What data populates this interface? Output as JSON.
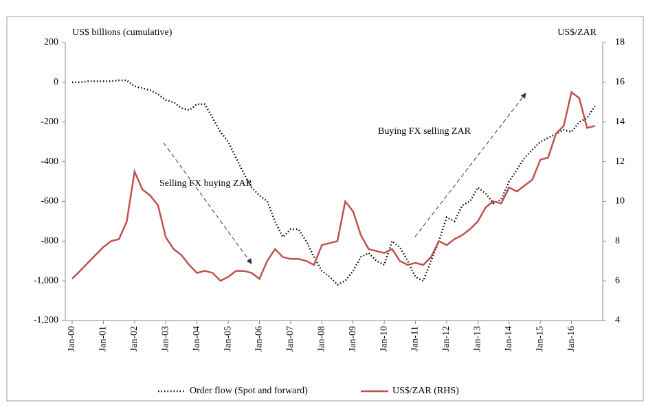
{
  "chart_data": {
    "type": "line",
    "y_label": "US$ billions (cumulative)",
    "y2_label": "US$/ZAR",
    "annotations": [
      "Selling FX buying ZAR",
      "Buying FX selling ZAR"
    ],
    "categories": [
      "Jan-00",
      null,
      null,
      null,
      "Jan-01",
      null,
      null,
      null,
      "Jan-02",
      null,
      null,
      null,
      "Jan-03",
      null,
      null,
      null,
      "Jan-04",
      null,
      null,
      null,
      "Jan-05",
      null,
      null,
      null,
      "Jan-06",
      null,
      null,
      null,
      "Jan-07",
      null,
      null,
      null,
      "Jan-08",
      null,
      null,
      null,
      "Jan-09",
      null,
      null,
      null,
      "Jan-10",
      null,
      null,
      null,
      "Jan-11",
      null,
      null,
      null,
      "Jan-12",
      null,
      null,
      null,
      "Jan-13",
      null,
      null,
      null,
      "Jan-14",
      null,
      null,
      null,
      "Jan-15",
      null,
      null,
      null,
      "Jan-16",
      null,
      null,
      null
    ],
    "series": [
      {
        "name": "Order flow (Spot and forward)",
        "color": "#000000",
        "line_style": "dotted",
        "axis": "y",
        "values": [
          0,
          0,
          5,
          5,
          5,
          5,
          10,
          10,
          -20,
          -30,
          -40,
          -60,
          -90,
          -100,
          -130,
          -140,
          -110,
          -110,
          -180,
          -250,
          -300,
          -380,
          -460,
          -530,
          -570,
          -600,
          -700,
          -780,
          -740,
          -740,
          -800,
          -880,
          -950,
          -980,
          -1020,
          -1000,
          -950,
          -880,
          -860,
          -900,
          -920,
          -800,
          -830,
          -900,
          -980,
          -1000,
          -900,
          -800,
          -680,
          -700,
          -620,
          -600,
          -530,
          -560,
          -610,
          -590,
          -500,
          -440,
          -380,
          -340,
          -300,
          -280,
          -260,
          -240,
          -250,
          -200,
          -180,
          -120
        ]
      },
      {
        "name": "US$/ZAR (RHS)",
        "color": "#c0504d",
        "line_style": "solid",
        "axis": "y2",
        "values": [
          6.1,
          6.5,
          6.9,
          7.3,
          7.7,
          8.0,
          8.1,
          9.0,
          11.5,
          10.6,
          10.3,
          9.8,
          8.2,
          7.6,
          7.3,
          6.8,
          6.4,
          6.5,
          6.4,
          6.0,
          6.2,
          6.5,
          6.5,
          6.4,
          6.1,
          7.0,
          7.6,
          7.2,
          7.1,
          7.1,
          7.0,
          6.8,
          7.8,
          7.9,
          8.0,
          10.0,
          9.5,
          8.3,
          7.6,
          7.5,
          7.4,
          7.6,
          7.0,
          6.8,
          6.9,
          6.8,
          7.2,
          8.0,
          7.8,
          8.1,
          8.3,
          8.6,
          9.0,
          9.7,
          10.0,
          9.9,
          10.7,
          10.5,
          10.8,
          11.1,
          12.1,
          12.2,
          13.4,
          13.8,
          15.5,
          15.2,
          13.7,
          13.8
        ]
      }
    ],
    "ylim": [
      -1200,
      200
    ],
    "yticks": [
      {
        "value": -1200,
        "label": "-1,200"
      },
      {
        "value": -1000,
        "label": "-1,000"
      },
      -800,
      -600,
      -400,
      -200,
      0,
      200
    ],
    "y2lim": [
      4,
      18
    ],
    "y2ticks": [
      4,
      6,
      8,
      10,
      12,
      14,
      16,
      18
    ],
    "grid": false,
    "legend": "bottom"
  }
}
